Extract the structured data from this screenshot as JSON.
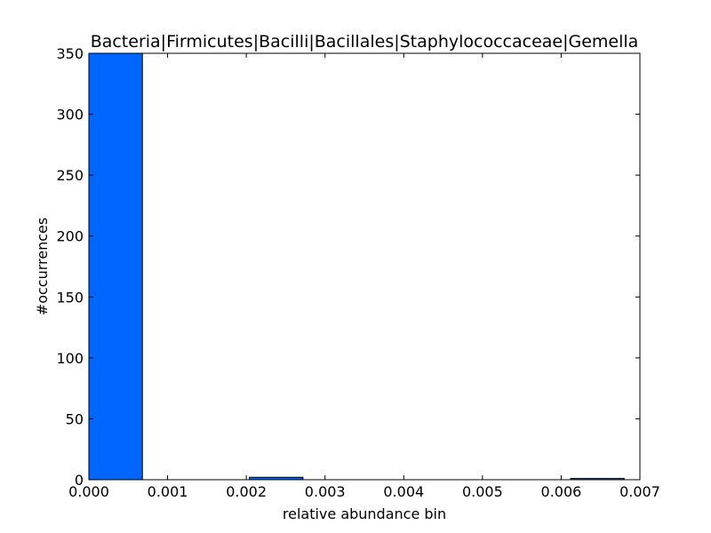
{
  "chart_data": {
    "type": "bar",
    "title": "Bacteria|Firmicutes|Bacilli|Bacillales|Staphylococcaceae|Gemella",
    "xlabel": "relative abundance bin",
    "ylabel": "#occurrences",
    "xlim": [
      0,
      0.007
    ],
    "ylim": [
      0,
      350
    ],
    "xticks": [
      "0.000",
      "0.001",
      "0.002",
      "0.003",
      "0.004",
      "0.005",
      "0.006",
      "0.007"
    ],
    "xtick_values": [
      0,
      0.001,
      0.002,
      0.003,
      0.004,
      0.005,
      0.006,
      0.007
    ],
    "yticks": [
      "0",
      "50",
      "100",
      "150",
      "200",
      "250",
      "300",
      "350"
    ],
    "ytick_values": [
      0,
      50,
      100,
      150,
      200,
      250,
      300,
      350
    ],
    "bin_width": 0.00068,
    "bins": [
      {
        "x": 0.0,
        "value": 350
      },
      {
        "x": 0.00068,
        "value": 0
      },
      {
        "x": 0.00136,
        "value": 0
      },
      {
        "x": 0.00204,
        "value": 2
      },
      {
        "x": 0.00272,
        "value": 0
      },
      {
        "x": 0.0034,
        "value": 0
      },
      {
        "x": 0.00408,
        "value": 0
      },
      {
        "x": 0.00476,
        "value": 0
      },
      {
        "x": 0.00544,
        "value": 0
      },
      {
        "x": 0.00612,
        "value": 1
      }
    ],
    "bar_color": "#0066ff",
    "grid": false,
    "legend": "none"
  }
}
